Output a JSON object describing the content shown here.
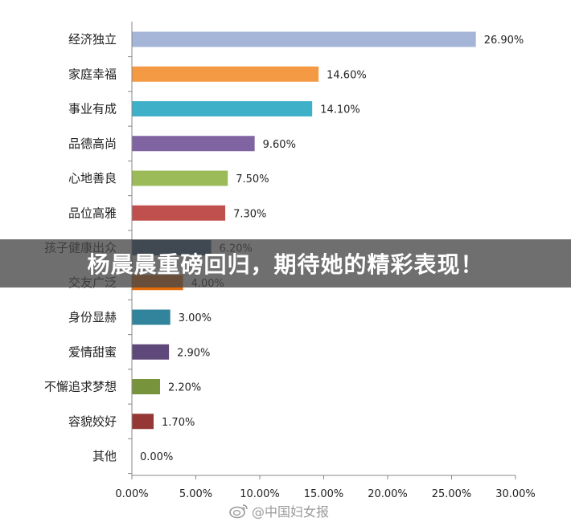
{
  "chart_data": {
    "type": "bar",
    "orientation": "horizontal",
    "categories": [
      "经济独立",
      "家庭幸福",
      "事业有成",
      "品德高尚",
      "心地善良",
      "品位高雅",
      "孩子健康出众",
      "交友广泛",
      "身份显赫",
      "爱情甜蜜",
      "不懈追求梦想",
      "容貌姣好",
      "其他"
    ],
    "values": [
      26.9,
      14.6,
      14.1,
      9.6,
      7.5,
      7.3,
      6.2,
      4.0,
      3.0,
      2.9,
      2.2,
      1.7,
      0.0
    ],
    "value_labels": [
      "26.90%",
      "14.60%",
      "14.10%",
      "9.60%",
      "7.50%",
      "7.30%",
      "6.20%",
      "4.00%",
      "3.00%",
      "2.90%",
      "2.20%",
      "1.70%",
      "0.00%"
    ],
    "colors": [
      "#A5B5D8",
      "#F49A44",
      "#3EB1C8",
      "#8064A2",
      "#9BBB59",
      "#C0504D",
      "#2C4D75",
      "#E46C0A",
      "#31849B",
      "#5F497A",
      "#77933C",
      "#953735",
      "#4F81BD"
    ],
    "xlim": [
      0,
      30
    ],
    "x_ticks": [
      "0.00%",
      "5.00%",
      "10.00%",
      "15.00%",
      "20.00%",
      "25.00%",
      "30.00%"
    ],
    "x_tick_values": [
      0,
      5,
      10,
      15,
      20,
      25,
      30
    ],
    "grid": false,
    "title": "",
    "xlabel": "",
    "ylabel": ""
  },
  "banner": {
    "text": "杨晨晨重磅回归，期待她的精彩表现！"
  },
  "watermark": {
    "text": "@中国妇女报",
    "icon": "weibo-icon"
  }
}
